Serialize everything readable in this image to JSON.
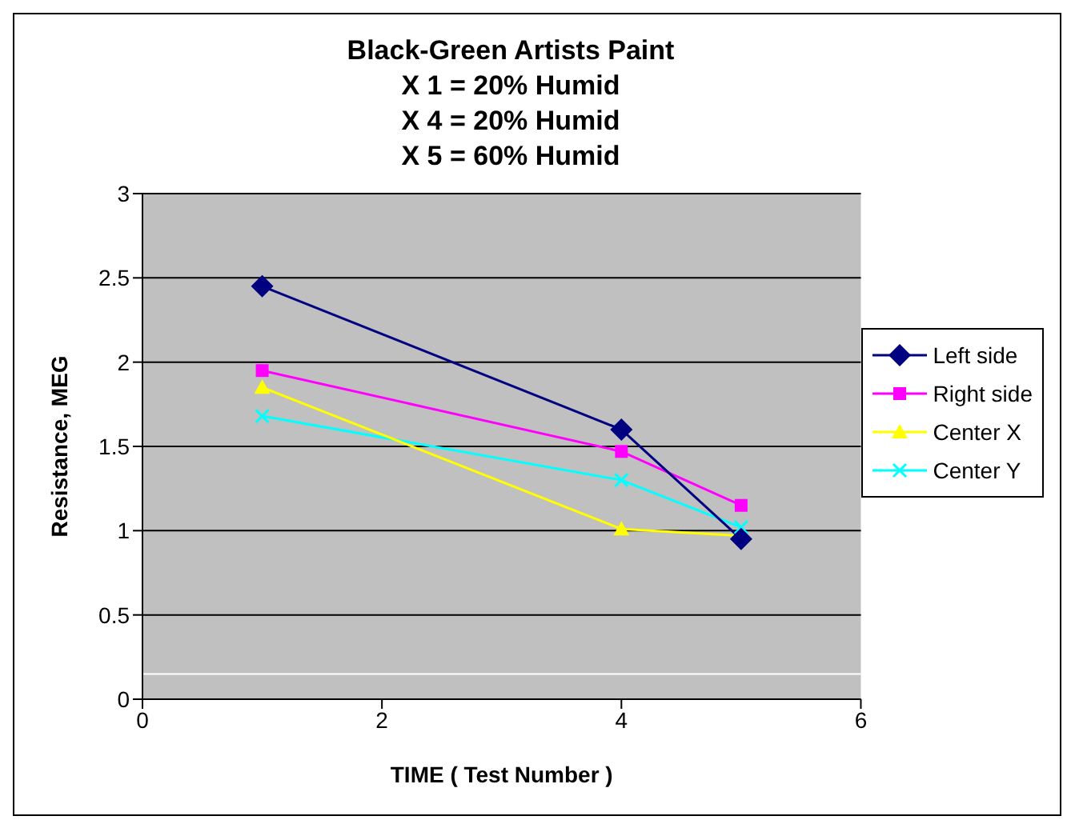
{
  "chart_data": {
    "type": "line",
    "title": "Black-Green Artists Paint",
    "subtitle": "X 1 = 20% Humid\nX 4 = 20% Humid\nX 5 = 60% Humid",
    "xlabel": "TIME  ( Test Number )",
    "ylabel": "Resistance,   MEG",
    "x": [
      1,
      4,
      5
    ],
    "series": [
      {
        "name": "Left side",
        "color": "#000080",
        "marker": "diamond",
        "values": [
          2.45,
          1.6,
          0.95
        ]
      },
      {
        "name": "Right side",
        "color": "#ff00ff",
        "marker": "square",
        "values": [
          1.95,
          1.47,
          1.15
        ]
      },
      {
        "name": "Center X",
        "color": "#ffff00",
        "marker": "triangle",
        "values": [
          1.85,
          1.01,
          0.97
        ]
      },
      {
        "name": "Center Y",
        "color": "#00ffff",
        "marker": "cross",
        "values": [
          1.68,
          1.3,
          1.02
        ]
      }
    ],
    "xlim": [
      0,
      6
    ],
    "xticks": [
      0,
      2,
      4,
      6
    ],
    "ylim": [
      0,
      3
    ],
    "yticks": [
      0,
      0.5,
      1,
      1.5,
      2,
      2.5,
      3
    ],
    "grid": "y",
    "legend": "right",
    "line_style": "solid",
    "ref_lines": [
      {
        "axis": "y",
        "value": 0.15,
        "color": "#ffffff"
      }
    ]
  }
}
